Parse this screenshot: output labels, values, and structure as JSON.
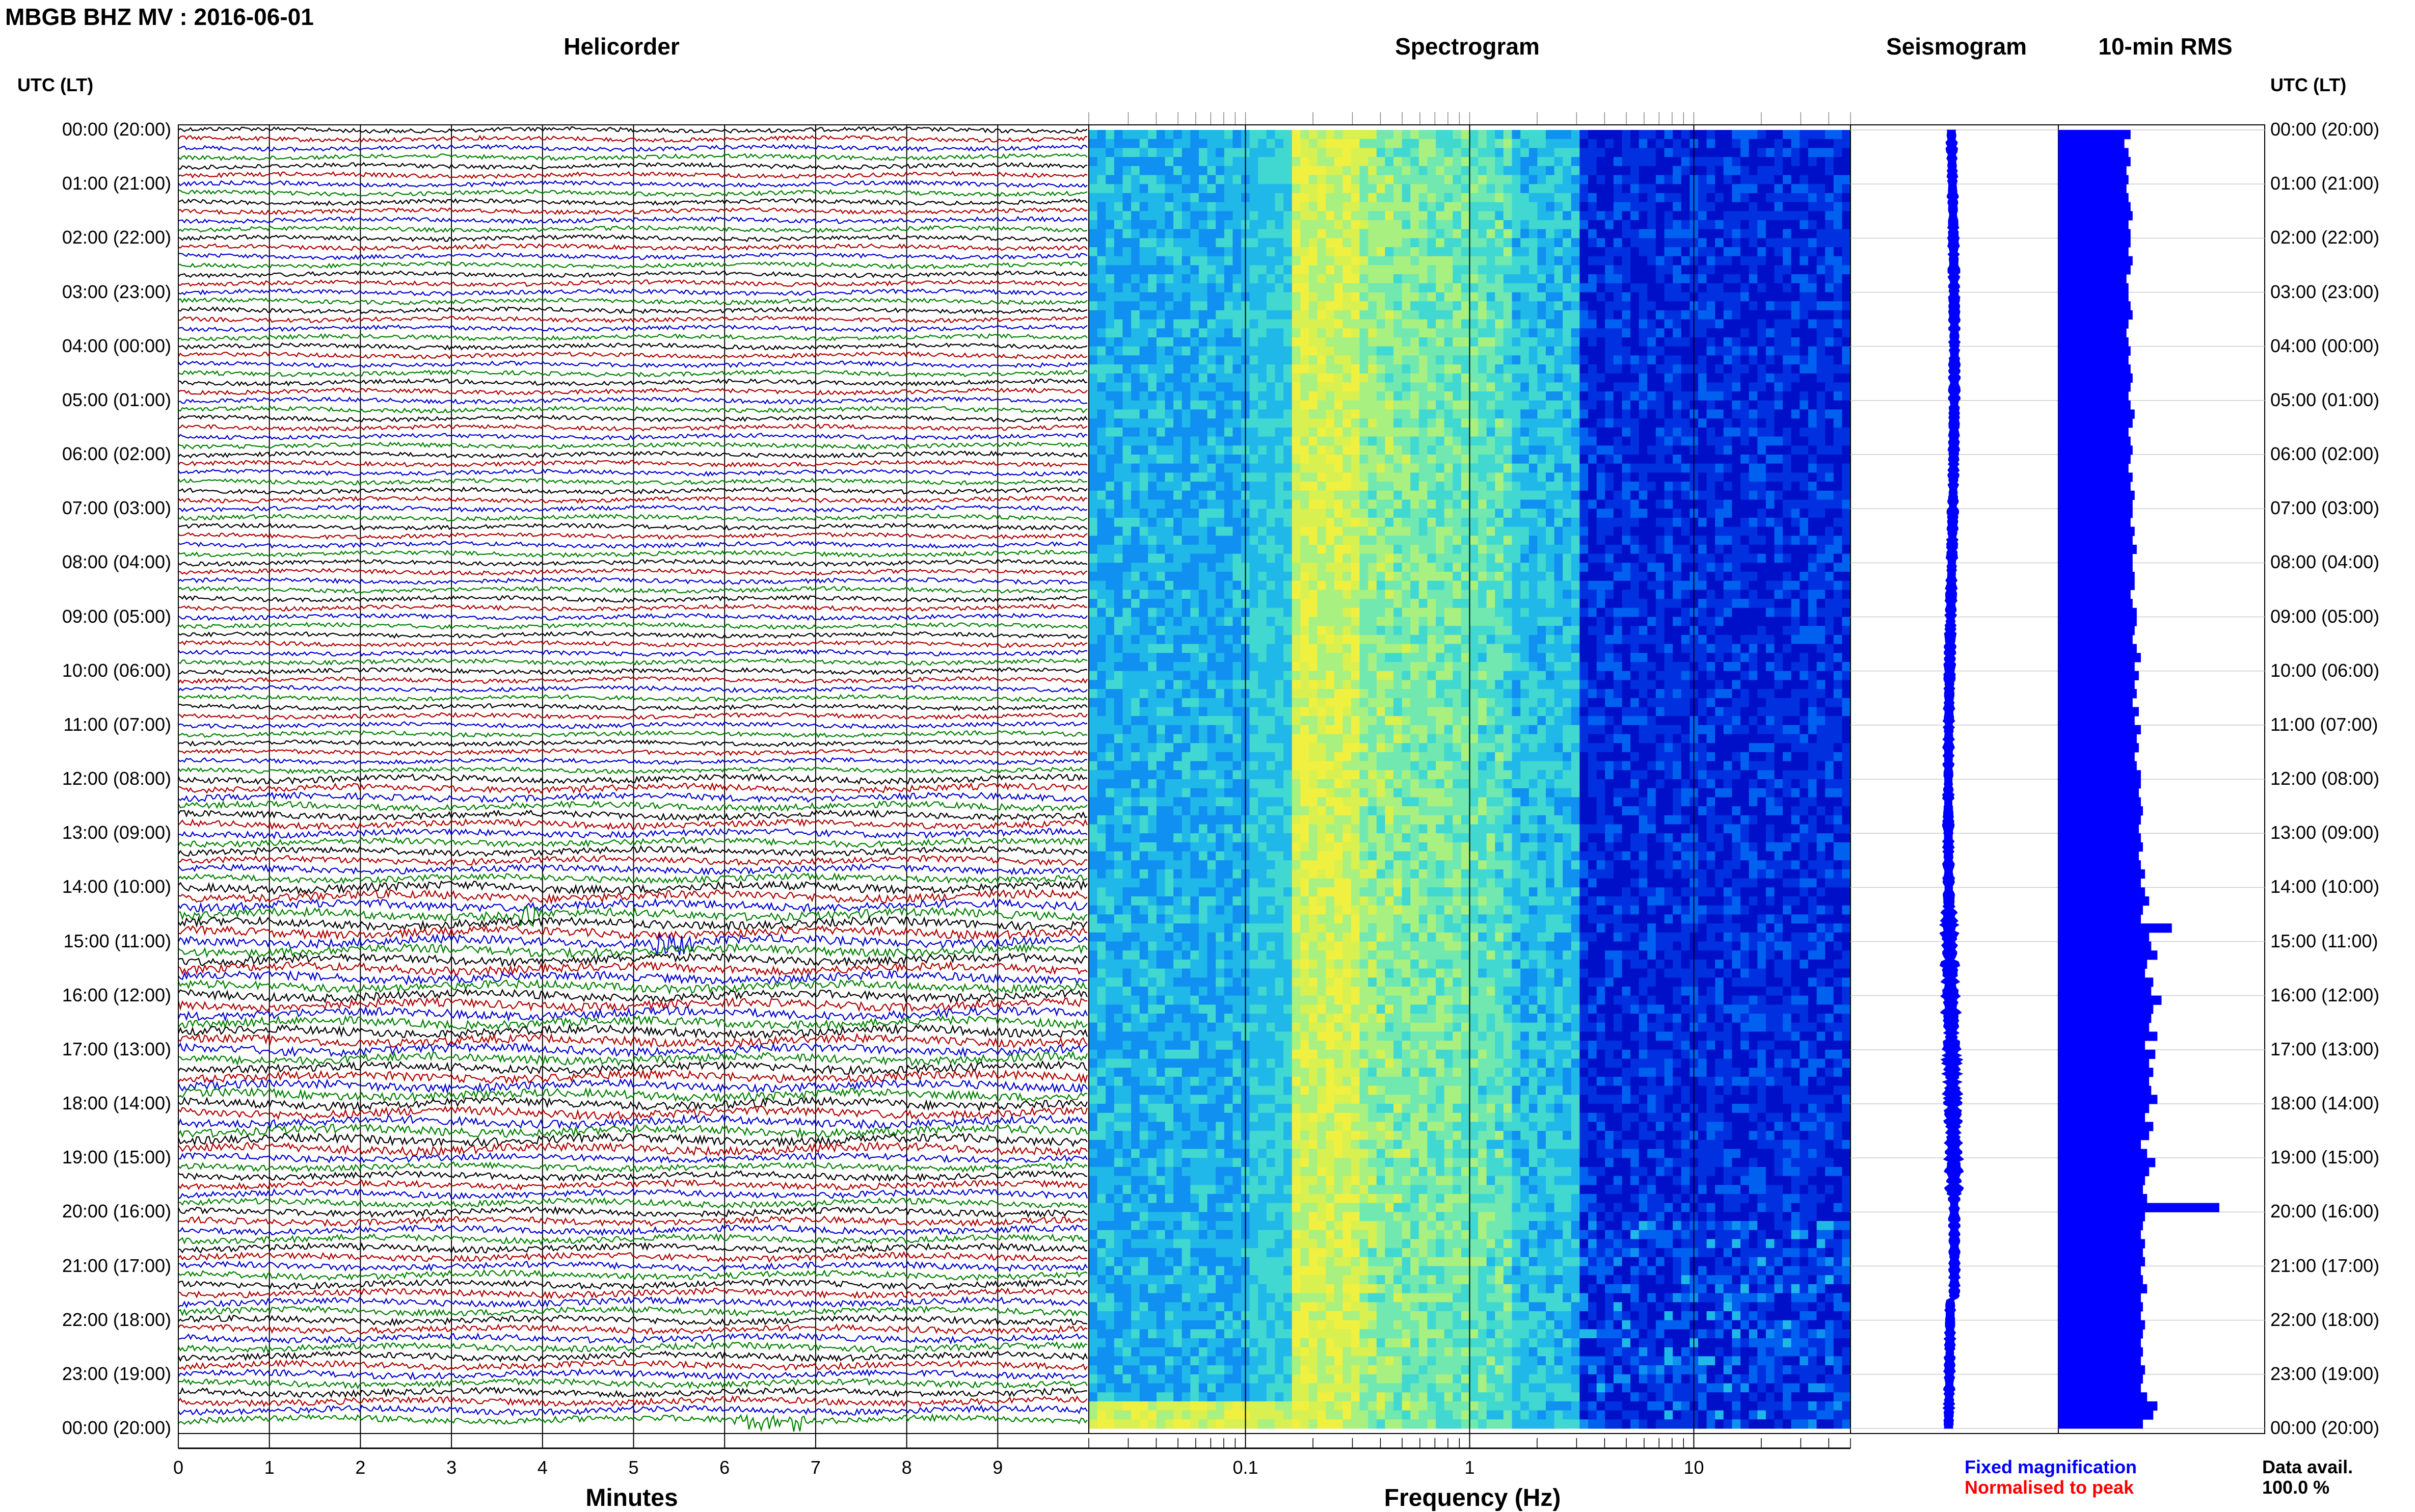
{
  "title": "MBGB BHZ MV : 2016-06-01",
  "panels": {
    "helicorder": "Helicorder",
    "spectrogram": "Spectrogram",
    "seismogram": "Seismogram",
    "rms": "10-min RMS"
  },
  "time_axis_label": "UTC (LT)",
  "footer": {
    "minutes_label": "Minutes",
    "frequency_label": "Frequency (Hz)",
    "fixed_magnification": "Fixed magnification",
    "normalised_to_peak": "Normalised to peak",
    "data_avail_label": "Data avail.",
    "data_avail_value": "100.0 %"
  },
  "colors": {
    "trace_cycle": [
      "#000000",
      "#b00000",
      "#0000d0",
      "#008000"
    ],
    "fixed_magnification": "#0000ff",
    "normalised_to_peak": "#ff0000",
    "rms_bar": "#0000ff",
    "seismogram_trace": "#0000ff"
  },
  "chart_data": [
    {
      "type": "line",
      "name": "helicorder",
      "x_ticks": [
        "0",
        "1",
        "2",
        "3",
        "4",
        "5",
        "6",
        "7",
        "8",
        "9"
      ],
      "xlim": [
        0,
        10
      ],
      "xlabel": "Minutes",
      "time_labels": [
        "00:00 (20:00)",
        "01:00 (21:00)",
        "02:00 (22:00)",
        "03:00 (23:00)",
        "04:00 (00:00)",
        "05:00 (01:00)",
        "06:00 (02:00)",
        "07:00 (03:00)",
        "08:00 (04:00)",
        "09:00 (05:00)",
        "10:00 (06:00)",
        "11:00 (07:00)",
        "12:00 (08:00)",
        "13:00 (09:00)",
        "14:00 (10:00)",
        "15:00 (11:00)",
        "16:00 (12:00)",
        "17:00 (13:00)",
        "18:00 (14:00)",
        "19:00 (15:00)",
        "20:00 (16:00)",
        "21:00 (17:00)",
        "22:00 (18:00)",
        "23:00 (19:00)",
        "00:00 (20:00)"
      ],
      "traces_per_hour": 6,
      "trace_minutes": 10
    },
    {
      "type": "heatmap",
      "name": "spectrogram",
      "x_scale": "log",
      "xlim": [
        0.02,
        50
      ],
      "x_ticks": [
        "0.1",
        "1",
        "10"
      ],
      "xlabel": "Frequency (Hz)"
    },
    {
      "type": "line",
      "name": "seismogram"
    },
    {
      "type": "bar",
      "name": "10-min RMS",
      "values": [
        35,
        32,
        34,
        35,
        33,
        34,
        33,
        34,
        35,
        36,
        34,
        35,
        35,
        34,
        36,
        35,
        33,
        34,
        34,
        35,
        36,
        34,
        33,
        34,
        35,
        34,
        35,
        36,
        35,
        34,
        35,
        37,
        36,
        34,
        35,
        36,
        35,
        34,
        36,
        35,
        37,
        36,
        36,
        35,
        37,
        36,
        38,
        36,
        36,
        37,
        37,
        35,
        36,
        38,
        38,
        37,
        36,
        38,
        40,
        37,
        39,
        37,
        38,
        36,
        39,
        37,
        40,
        38,
        39,
        37,
        38,
        40,
        40,
        39,
        40,
        41,
        40,
        39,
        40,
        41,
        39,
        40,
        42,
        40,
        42,
        44,
        41,
        40,
        55,
        44,
        45,
        48,
        43,
        42,
        46,
        45,
        50,
        46,
        45,
        44,
        48,
        42,
        47,
        44,
        46,
        44,
        45,
        48,
        44,
        42,
        46,
        44,
        40,
        43,
        47,
        44,
        42,
        41,
        43,
        78,
        42,
        41,
        40,
        42,
        41,
        42,
        40,
        41,
        43,
        40,
        41,
        40,
        42,
        41,
        40,
        41,
        40,
        42,
        41,
        40,
        43,
        48,
        46,
        41
      ],
      "xlim": [
        0,
        100
      ]
    }
  ]
}
